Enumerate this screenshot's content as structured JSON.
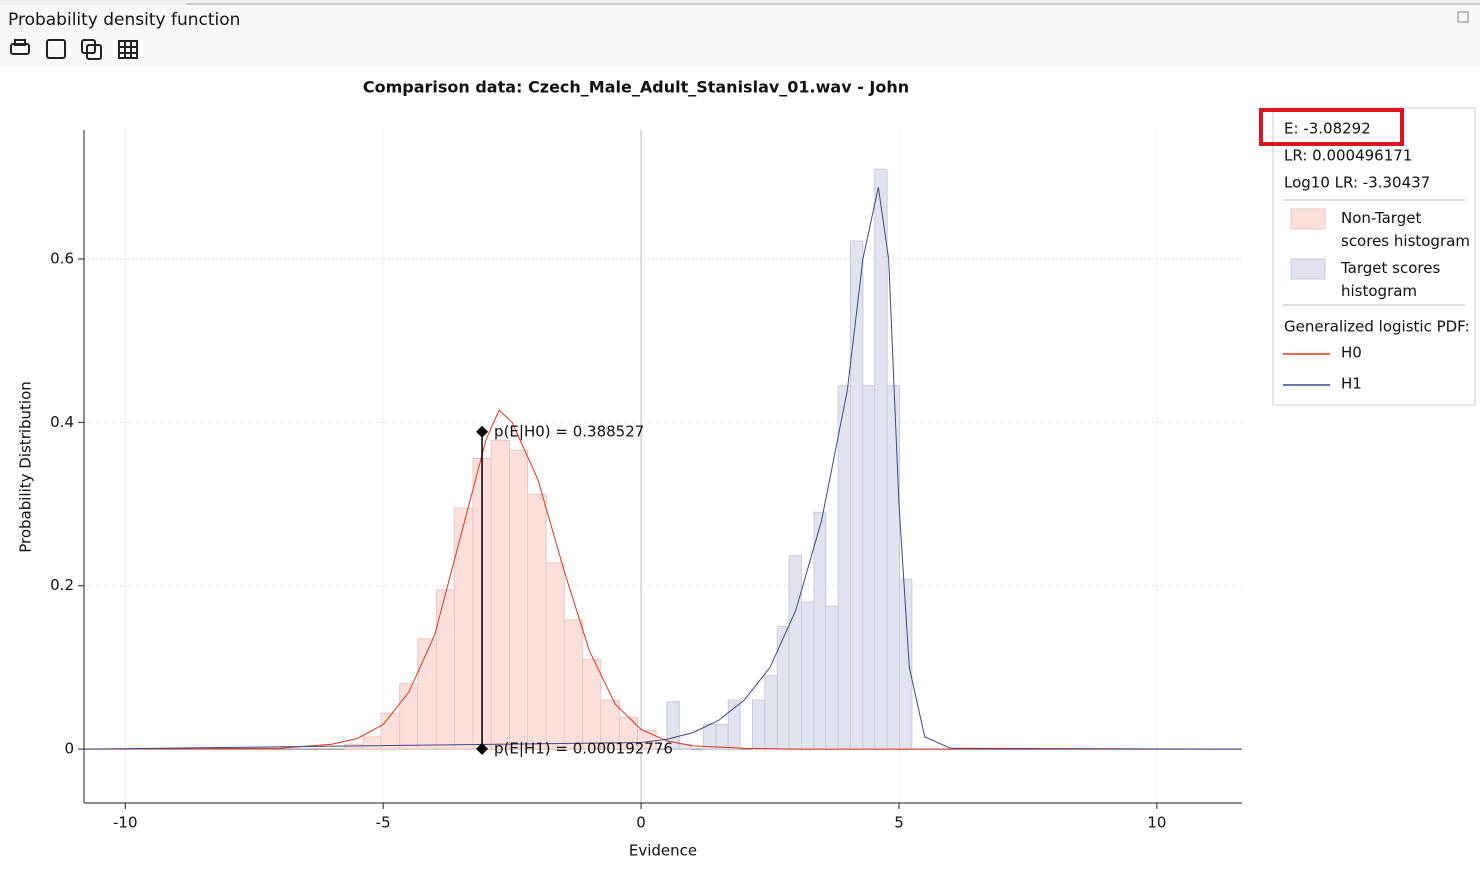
{
  "window": {
    "title": "Probability density function"
  },
  "readout": {
    "e": "E: -3.08292",
    "lr": "LR: 0.000496171",
    "log_lr": "Log10 LR: -3.30437"
  },
  "chart_data": {
    "type": "histogram",
    "title": "Comparison data: Czech_Male_Adult_Stanislav_01.wav - John",
    "xlabel": "Evidence",
    "ylabel": "Probability Distribution",
    "xlim": [
      -10.8,
      11.65
    ],
    "ylim": [
      -0.066,
      0.758
    ],
    "xticks": [
      -10,
      -5,
      0,
      5,
      10
    ],
    "yticks": [
      0,
      0.2,
      0.4,
      0.6
    ],
    "grid": true,
    "histograms": [
      {
        "name": "Non-Target scores histogram",
        "color": "#fde0dc",
        "edge_color": "#e6c9c5",
        "bins": [
          -5.75,
          -5.39,
          -5.04,
          -4.68,
          -4.33,
          -3.97,
          -3.62,
          -3.26,
          -2.91,
          -2.55,
          -2.2,
          -1.84,
          -1.49,
          -1.13,
          -0.78,
          -0.42,
          -0.07,
          0.29
        ],
        "values": [
          0.006,
          0.015,
          0.044,
          0.08,
          0.135,
          0.195,
          0.295,
          0.356,
          0.378,
          0.366,
          0.312,
          0.228,
          0.158,
          0.11,
          0.06,
          0.039,
          0.023
        ]
      },
      {
        "name": "Target scores histogram",
        "color": "#e1e4ef",
        "edge_color": "#c8ccdb",
        "bins": [
          0.5,
          0.74,
          0.97,
          1.21,
          1.45,
          1.69,
          1.92,
          2.16,
          2.4,
          2.64,
          2.87,
          3.11,
          3.35,
          3.58,
          3.82,
          4.06,
          4.3,
          4.53,
          4.77,
          5.01,
          5.25
        ],
        "values": [
          0.058,
          0.006,
          0,
          0.03,
          0.03,
          0.06,
          0,
          0.06,
          0.09,
          0.15,
          0.237,
          0.18,
          0.29,
          0.175,
          0.445,
          0.622,
          0.445,
          0.71,
          0.445,
          0.208
        ]
      }
    ],
    "curves_title": "Generalized logistic PDF:",
    "curves": [
      {
        "name": "H0",
        "color": "#e8341c",
        "x": [
          -10.8,
          -7,
          -6,
          -5.5,
          -5,
          -4.5,
          -4,
          -3.5,
          -3,
          -2.75,
          -2.5,
          -2,
          -1.5,
          -1,
          -0.5,
          0,
          0.5,
          1,
          2,
          3,
          11.65
        ],
        "values": [
          0,
          0.001,
          0.006,
          0.013,
          0.03,
          0.07,
          0.14,
          0.26,
          0.38,
          0.415,
          0.4,
          0.33,
          0.22,
          0.12,
          0.055,
          0.024,
          0.01,
          0.004,
          0.001,
          0,
          0
        ]
      },
      {
        "name": "H1",
        "color": "#3d4a8c",
        "x": [
          -10.8,
          0,
          0.5,
          1,
          1.5,
          2,
          2.5,
          3,
          3.5,
          4,
          4.3,
          4.6,
          4.8,
          5,
          5.2,
          5.5,
          6,
          11.65
        ],
        "values": [
          0,
          0.008,
          0.012,
          0.02,
          0.035,
          0.06,
          0.1,
          0.17,
          0.28,
          0.44,
          0.6,
          0.688,
          0.6,
          0.3,
          0.1,
          0.015,
          0.001,
          0
        ]
      }
    ],
    "marker": {
      "x": -3.08292,
      "points": [
        {
          "value": 0.388527,
          "label": "p(E|H0) = 0.388527"
        },
        {
          "value": 0.000192776,
          "label": "p(E|H1) = 0.000192776"
        }
      ]
    }
  }
}
